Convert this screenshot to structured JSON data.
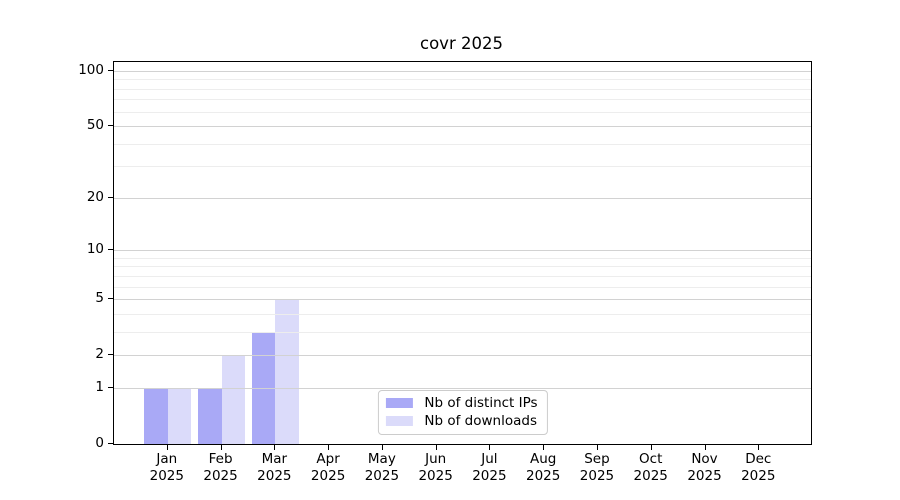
{
  "chart_data": {
    "type": "bar",
    "title": "covr 2025",
    "categories": [
      "Jan",
      "Feb",
      "Mar",
      "Apr",
      "May",
      "Jun",
      "Jul",
      "Aug",
      "Sep",
      "Oct",
      "Nov",
      "Dec"
    ],
    "x_tick_year": "2025",
    "series": [
      {
        "name": "Nb of distinct IPs",
        "color": "#a9a9f6",
        "values": [
          1,
          1,
          3,
          0,
          0,
          0,
          0,
          0,
          0,
          0,
          0,
          0
        ]
      },
      {
        "name": "Nb of downloads",
        "color": "#dbdbfa",
        "values": [
          1,
          2,
          5,
          0,
          0,
          0,
          0,
          0,
          0,
          0,
          0,
          0
        ]
      }
    ],
    "xlabel": "",
    "ylabel": "",
    "yscale": "log10(1+v)",
    "ylim": [
      0,
      112
    ],
    "y_major_ticks": [
      0,
      1,
      2,
      5,
      10,
      20,
      50,
      100
    ],
    "y_minor_ticks": [
      3,
      4,
      6,
      7,
      8,
      9,
      30,
      40,
      60,
      70,
      80,
      90
    ],
    "grid": "horizontal, drawn above bars",
    "legend_position": "lower center inside plot",
    "colors": {
      "grid_major": "#d2d2d2",
      "grid_minor": "#ededed",
      "spine": "#000000",
      "text": "#000000",
      "background": "#ffffff"
    }
  }
}
